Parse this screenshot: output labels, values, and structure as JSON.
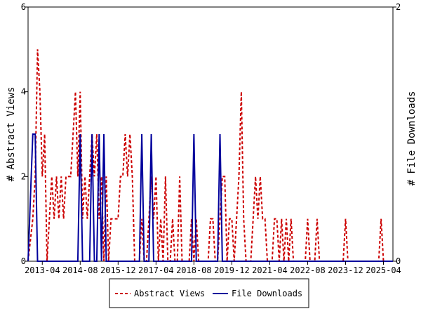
{
  "chart_data": {
    "type": "line",
    "x_tick_labels": [
      "2013-04",
      "2014-08",
      "2015-12",
      "2017-04",
      "2018-08",
      "2019-12",
      "2021-04",
      "2022-08",
      "2023-12",
      "2025-04"
    ],
    "x_range": [
      "2012-10",
      "2025-08"
    ],
    "ylabel_left": "# Abstract Views",
    "ylabel_right": "# File Downloads",
    "ylim_left": [
      0,
      6
    ],
    "yticks_left": [
      "0",
      "2",
      "4",
      "6"
    ],
    "ylim_right": [
      0,
      2
    ],
    "yticks_right": [
      "0",
      "2"
    ],
    "legend_position": "bottom-center",
    "grid": false,
    "series": [
      {
        "name": "Abstract Views",
        "axis": "left",
        "color": "#cc0000",
        "style": "dashed",
        "points": [
          [
            "2012-10",
            0
          ],
          [
            "2012-12",
            1
          ],
          [
            "2013-01",
            2
          ],
          [
            "2013-02",
            5
          ],
          [
            "2013-03",
            4
          ],
          [
            "2013-04",
            2
          ],
          [
            "2013-05",
            3
          ],
          [
            "2013-06",
            0
          ],
          [
            "2013-07",
            1
          ],
          [
            "2013-08",
            2
          ],
          [
            "2013-09",
            1
          ],
          [
            "2013-10",
            2
          ],
          [
            "2013-11",
            1
          ],
          [
            "2013-12",
            2
          ],
          [
            "2014-01",
            1
          ],
          [
            "2014-02",
            2
          ],
          [
            "2014-03",
            2
          ],
          [
            "2014-04",
            2
          ],
          [
            "2014-05",
            3
          ],
          [
            "2014-06",
            4
          ],
          [
            "2014-07",
            2
          ],
          [
            "2014-08",
            4
          ],
          [
            "2014-09",
            1
          ],
          [
            "2014-10",
            2
          ],
          [
            "2014-11",
            1
          ],
          [
            "2014-12",
            2
          ],
          [
            "2015-01",
            3
          ],
          [
            "2015-02",
            2
          ],
          [
            "2015-03",
            3
          ],
          [
            "2015-04",
            1
          ],
          [
            "2015-05",
            2
          ],
          [
            "2015-06",
            0
          ],
          [
            "2015-07",
            2
          ],
          [
            "2015-08",
            0
          ],
          [
            "2015-09",
            1
          ],
          [
            "2015-10",
            1
          ],
          [
            "2015-11",
            1
          ],
          [
            "2015-12",
            1
          ],
          [
            "2016-01",
            2
          ],
          [
            "2016-02",
            2
          ],
          [
            "2016-03",
            3
          ],
          [
            "2016-04",
            2
          ],
          [
            "2016-05",
            3
          ],
          [
            "2016-06",
            2
          ],
          [
            "2016-07",
            0
          ],
          [
            "2016-08",
            0
          ],
          [
            "2016-09",
            0
          ],
          [
            "2016-10",
            1
          ],
          [
            "2016-11",
            0
          ],
          [
            "2016-12",
            0
          ],
          [
            "2017-01",
            1
          ],
          [
            "2017-02",
            2
          ],
          [
            "2017-03",
            1
          ],
          [
            "2017-04",
            2
          ],
          [
            "2017-05",
            0
          ],
          [
            "2017-06",
            1
          ],
          [
            "2017-07",
            0
          ],
          [
            "2017-08",
            2
          ],
          [
            "2017-09",
            0
          ],
          [
            "2017-10",
            0
          ],
          [
            "2017-11",
            1
          ],
          [
            "2017-12",
            0
          ],
          [
            "2018-01",
            0
          ],
          [
            "2018-02",
            2
          ],
          [
            "2018-03",
            0
          ],
          [
            "2018-04",
            0
          ],
          [
            "2018-05",
            0
          ],
          [
            "2018-06",
            0
          ],
          [
            "2018-07",
            1
          ],
          [
            "2018-08",
            0
          ],
          [
            "2018-09",
            1
          ],
          [
            "2018-10",
            0
          ],
          [
            "2018-11",
            0
          ],
          [
            "2018-12",
            0
          ],
          [
            "2019-01",
            0
          ],
          [
            "2019-02",
            0
          ],
          [
            "2019-03",
            1
          ],
          [
            "2019-04",
            1
          ],
          [
            "2019-05",
            0
          ],
          [
            "2019-06",
            0
          ],
          [
            "2019-07",
            1
          ],
          [
            "2019-08",
            2
          ],
          [
            "2019-09",
            2
          ],
          [
            "2019-10",
            0
          ],
          [
            "2019-11",
            1
          ],
          [
            "2019-12",
            1
          ],
          [
            "2020-01",
            0
          ],
          [
            "2020-02",
            1
          ],
          [
            "2020-03",
            2
          ],
          [
            "2020-04",
            4
          ],
          [
            "2020-05",
            1
          ],
          [
            "2020-06",
            0
          ],
          [
            "2020-07",
            0
          ],
          [
            "2020-08",
            0
          ],
          [
            "2020-09",
            1
          ],
          [
            "2020-10",
            2
          ],
          [
            "2020-11",
            1
          ],
          [
            "2020-12",
            2
          ],
          [
            "2021-01",
            1
          ],
          [
            "2021-02",
            1
          ],
          [
            "2021-03",
            0
          ],
          [
            "2021-04",
            0
          ],
          [
            "2021-05",
            0
          ],
          [
            "2021-06",
            1
          ],
          [
            "2021-07",
            1
          ],
          [
            "2021-08",
            0
          ],
          [
            "2021-09",
            1
          ],
          [
            "2021-10",
            0
          ],
          [
            "2021-11",
            1
          ],
          [
            "2021-12",
            0
          ],
          [
            "2022-01",
            1
          ],
          [
            "2022-02",
            0
          ],
          [
            "2022-03",
            0
          ],
          [
            "2022-04",
            0
          ],
          [
            "2022-05",
            0
          ],
          [
            "2022-06",
            0
          ],
          [
            "2022-07",
            0
          ],
          [
            "2022-08",
            1
          ],
          [
            "2022-09",
            0
          ],
          [
            "2022-10",
            0
          ],
          [
            "2022-11",
            0
          ],
          [
            "2022-12",
            1
          ],
          [
            "2023-01",
            0
          ],
          [
            "2023-02",
            0
          ],
          [
            "2023-03",
            0
          ],
          [
            "2023-04",
            0
          ],
          [
            "2023-05",
            0
          ],
          [
            "2023-06",
            0
          ],
          [
            "2023-07",
            0
          ],
          [
            "2023-08",
            0
          ],
          [
            "2023-09",
            0
          ],
          [
            "2023-10",
            0
          ],
          [
            "2023-11",
            0
          ],
          [
            "2023-12",
            1
          ],
          [
            "2024-01",
            0
          ],
          [
            "2024-02",
            0
          ],
          [
            "2024-03",
            0
          ],
          [
            "2024-04",
            0
          ],
          [
            "2024-05",
            0
          ],
          [
            "2024-06",
            0
          ],
          [
            "2024-07",
            0
          ],
          [
            "2024-08",
            0
          ],
          [
            "2024-09",
            0
          ],
          [
            "2024-10",
            0
          ],
          [
            "2024-11",
            0
          ],
          [
            "2024-12",
            0
          ],
          [
            "2025-01",
            0
          ],
          [
            "2025-02",
            0
          ],
          [
            "2025-03",
            1
          ],
          [
            "2025-04",
            0
          ],
          [
            "2025-05",
            0
          ],
          [
            "2025-06",
            0
          ],
          [
            "2025-07",
            0
          ],
          [
            "2025-08",
            0
          ]
        ]
      },
      {
        "name": "File Downloads",
        "axis": "right",
        "color": "#00009c",
        "style": "solid",
        "points": [
          [
            "2012-10",
            0
          ],
          [
            "2012-12",
            1
          ],
          [
            "2013-01",
            1
          ],
          [
            "2013-02",
            0
          ],
          [
            "2013-03",
            0
          ],
          [
            "2014-07",
            0
          ],
          [
            "2014-08",
            1
          ],
          [
            "2014-09",
            0
          ],
          [
            "2014-12",
            0
          ],
          [
            "2015-01",
            1
          ],
          [
            "2015-02",
            0
          ],
          [
            "2015-03",
            0
          ],
          [
            "2015-04",
            1
          ],
          [
            "2015-05",
            0
          ],
          [
            "2015-06",
            1
          ],
          [
            "2015-07",
            0
          ],
          [
            "2016-09",
            0
          ],
          [
            "2016-10",
            1
          ],
          [
            "2016-11",
            0
          ],
          [
            "2017-01",
            0
          ],
          [
            "2017-02",
            1
          ],
          [
            "2017-03",
            0
          ],
          [
            "2018-07",
            0
          ],
          [
            "2018-08",
            1
          ],
          [
            "2018-09",
            0
          ],
          [
            "2019-06",
            0
          ],
          [
            "2019-07",
            1
          ],
          [
            "2019-08",
            0
          ],
          [
            "2025-08",
            0
          ]
        ]
      }
    ]
  }
}
